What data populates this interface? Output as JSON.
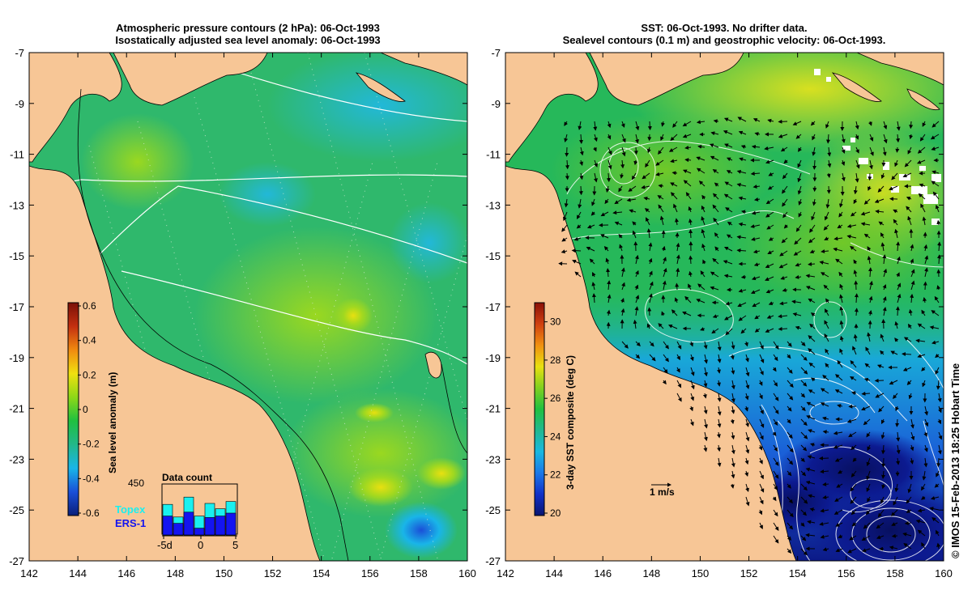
{
  "left_panel": {
    "title_line1": "Atmospheric pressure contours (2 hPa): 06-Oct-1993",
    "title_line2": "Isostatically adjusted sea level anomaly: 06-Oct-1993",
    "colorbar": {
      "label": "Sea level anomaly (m)",
      "ticks": [
        "-0.6",
        "-0.4",
        "-0.2",
        "0",
        "0.2",
        "0.4",
        "0.6"
      ],
      "colors": [
        "#0b1f7a",
        "#1a4fd8",
        "#19b5e8",
        "#23b88a",
        "#1fc040",
        "#8dd818",
        "#f0e010",
        "#f08a10",
        "#c43010",
        "#7a1008"
      ]
    },
    "inset": {
      "title": "Data count",
      "y_label": "450",
      "x_ticks": [
        "-5d",
        "0",
        "5"
      ],
      "legend": [
        {
          "name": "Topex",
          "color": "#19f0f0"
        },
        {
          "name": "ERS-1",
          "color": "#1414f0"
        }
      ],
      "bars_topex": [
        0.63,
        0.37,
        0.78,
        0.39,
        0.65,
        0.54,
        0.69
      ],
      "bars_ers": [
        0.39,
        0.24,
        0.47,
        0.14,
        0.36,
        0.39,
        0.45
      ]
    }
  },
  "right_panel": {
    "title_line1": "SST: 06-Oct-1993. No drifter data.",
    "title_line2": "Sealevel contours (0.1 m) and geostrophic velocity: 06-Oct-1993.",
    "colorbar": {
      "label": "3-day SST composite (deg C)",
      "ticks": [
        "20",
        "22",
        "24",
        "26",
        "28",
        "30"
      ],
      "colors": [
        "#0a1470",
        "#1030c8",
        "#1a78e8",
        "#19b8e0",
        "#20b890",
        "#20c040",
        "#80d020",
        "#e8e010",
        "#f09010",
        "#d04010",
        "#8a1008"
      ]
    },
    "velocity_scale_label": "1 m/s"
  },
  "axes": {
    "x_ticks": [
      "142",
      "144",
      "146",
      "148",
      "150",
      "152",
      "154",
      "156",
      "158",
      "160"
    ],
    "y_ticks": [
      "-7",
      "-9",
      "-11",
      "-13",
      "-15",
      "-17",
      "-19",
      "-21",
      "-23",
      "-25",
      "-27"
    ]
  },
  "colors": {
    "land": "#f7c696",
    "ocean_base": "#2fb86c",
    "contour": "#ffffff"
  },
  "copyright": "© IMOS 15-Feb-2013 18:25 Hobart Time"
}
